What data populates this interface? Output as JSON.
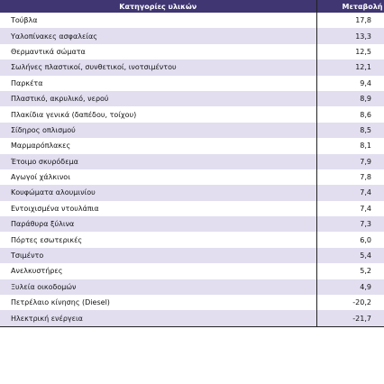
{
  "table": {
    "columns": [
      "Κατηγορίες υλικών",
      "Μεταβολή %"
    ],
    "rows": [
      [
        "Τούβλα",
        "17,8"
      ],
      [
        "Υαλοπίνακες ασφαλείας",
        "13,3"
      ],
      [
        "Θερμαντικά σώματα",
        "12,5"
      ],
      [
        "Σωλήνες πλαστικοί, συνθετικοί, ινοτσιμέντου",
        "12,1"
      ],
      [
        "Παρκέτα",
        "9,4"
      ],
      [
        "Πλαστικό, ακρυλικό, νερού",
        "8,9"
      ],
      [
        "Πλακίδια γενικά (δαπέδου, τοίχου)",
        "8,6"
      ],
      [
        "Σίδηρος οπλισμού",
        "8,5"
      ],
      [
        "Μαρμαρόπλακες",
        "8,1"
      ],
      [
        "Έτοιμο σκυρόδεμα",
        "7,9"
      ],
      [
        "Αγωγοί χάλκινοι",
        "7,8"
      ],
      [
        "Κουφώματα αλουμινίου",
        "7,4"
      ],
      [
        "Εντοιχισμένα ντουλάπια",
        "7,4"
      ],
      [
        "Παράθυρα ξύλινα",
        "7,3"
      ],
      [
        "Πόρτες εσωτερικές",
        "6,0"
      ],
      [
        "Τσιμέντο",
        "5,4"
      ],
      [
        "Ανελκυστήρες",
        "5,2"
      ],
      [
        "Ξυλεία οικοδομών",
        "4,9"
      ],
      [
        "Πετρέλαιο κίνησης (Diesel)",
        "-20,2"
      ],
      [
        "Ηλεκτρική ενέργεια",
        "-21,7"
      ]
    ]
  }
}
